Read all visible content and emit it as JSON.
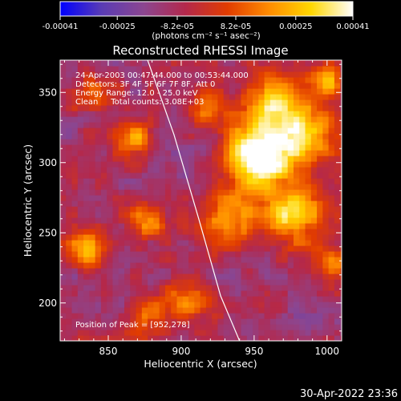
{
  "chart_data": {
    "type": "heatmap",
    "title": "Reconstructed RHESSI Image",
    "xlabel": "Heliocentric X (arcsec)",
    "ylabel": "Heliocentric Y (arcsec)",
    "xlim": [
      817,
      1010
    ],
    "ylim": [
      173,
      373
    ],
    "x_ticks": [
      850,
      900,
      950,
      1000
    ],
    "y_ticks": [
      200,
      250,
      300,
      350
    ],
    "colorbar": {
      "range": [
        -0.00041,
        0.00041
      ],
      "ticks": [
        "-0.00041",
        "-0.00025",
        "-8.2e-05",
        "8.2e-05",
        "0.00025",
        "0.00041"
      ],
      "unit_label": "(photons cm⁻² s⁻¹ asec⁻²)",
      "stops": [
        "#0000ff",
        "#5a3cb4",
        "#8c4690",
        "#b4284b",
        "#e13c00",
        "#ff8c00",
        "#ffd700",
        "#ffffff"
      ]
    },
    "annotations": [
      "24-Apr-2003 00:47:44.000 to 00:53:44.000",
      "Detectors: 3F 4F 5F 6F 7F 8F, Att 0",
      "Energy Range: 12.0 - 25.0 keV",
      "Clean     Total counts: 3.08E+03"
    ],
    "peak_label": "Position of Peak = [952,278]",
    "peak": [
      952,
      278
    ],
    "limb_curve": {
      "x": [
        877,
        895,
        912,
        927,
        940
      ],
      "y": [
        373,
        320,
        260,
        205,
        173
      ]
    },
    "sources": [
      {
        "x": 952,
        "y": 305,
        "amp": 1.0,
        "sigma": 16
      },
      {
        "x": 985,
        "y": 320,
        "amp": 0.75,
        "sigma": 14
      },
      {
        "x": 965,
        "y": 345,
        "amp": 0.65,
        "sigma": 13
      },
      {
        "x": 975,
        "y": 265,
        "amp": 0.7,
        "sigma": 15
      },
      {
        "x": 930,
        "y": 260,
        "amp": 0.55,
        "sigma": 12
      },
      {
        "x": 868,
        "y": 318,
        "amp": 0.45,
        "sigma": 10
      },
      {
        "x": 835,
        "y": 240,
        "amp": 0.5,
        "sigma": 10
      },
      {
        "x": 878,
        "y": 258,
        "amp": 0.45,
        "sigma": 10
      },
      {
        "x": 880,
        "y": 190,
        "amp": 0.4,
        "sigma": 10
      },
      {
        "x": 905,
        "y": 205,
        "amp": 0.45,
        "sigma": 11
      },
      {
        "x": 1000,
        "y": 360,
        "amp": 0.5,
        "sigma": 9
      },
      {
        "x": 840,
        "y": 350,
        "amp": 0.35,
        "sigma": 9
      },
      {
        "x": 920,
        "y": 340,
        "amp": 0.4,
        "sigma": 10
      },
      {
        "x": 1005,
        "y": 230,
        "amp": 0.35,
        "sigma": 9
      }
    ],
    "timestamp": "30-Apr-2022 23:36"
  }
}
